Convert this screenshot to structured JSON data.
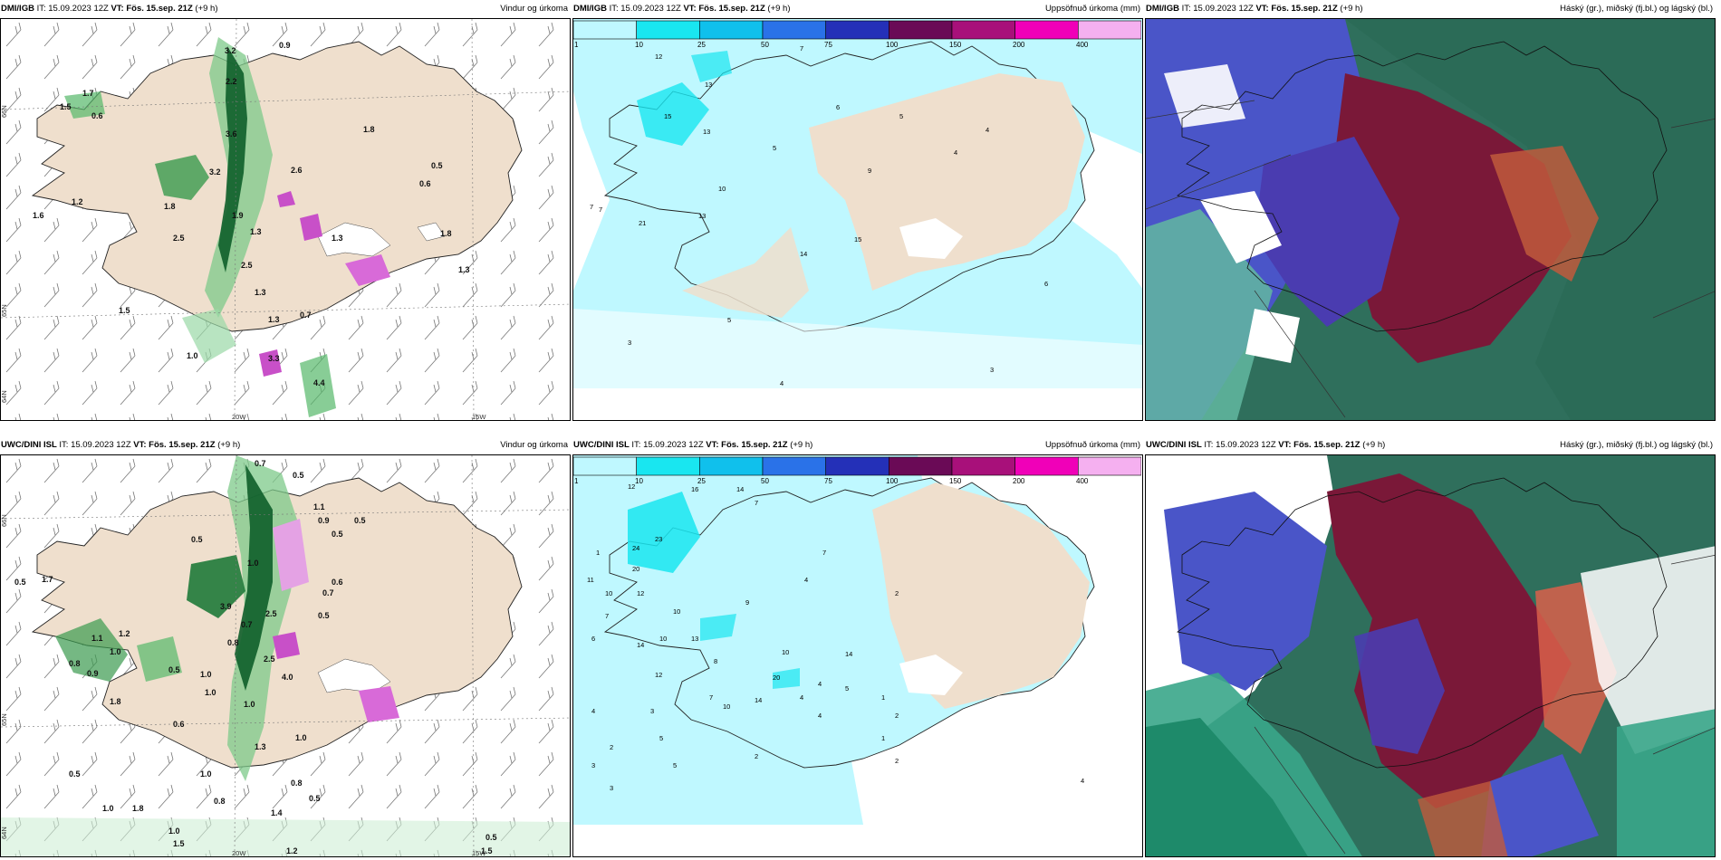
{
  "panels": [
    {
      "model": "DMI/IGB",
      "init_prefix": " IT: ",
      "init_time": "15.09.2023 12Z",
      "vt_prefix": " VT: ",
      "valid_time": "Fös. 15.sep. 21Z",
      "lead": " (+9 h)",
      "product": "Vindur og úrkoma",
      "lat_labels": [
        "66N",
        "65N",
        "64N"
      ],
      "lon_labels": [
        "20W",
        "15W"
      ],
      "values": [
        "3.2",
        "0.9",
        "2.2",
        "1.7",
        "1.5",
        "0.6",
        "3.6",
        "2.6",
        "1.8",
        "0.5",
        "3.2",
        "0.6",
        "1.2",
        "1.8",
        "1.6",
        "1.9",
        "2.5",
        "1.3",
        "1.3",
        "1.0",
        "0.7",
        "1.3",
        "1.5",
        "3.3",
        "1.3",
        "1.8",
        "2.5",
        "1.3",
        "4.4"
      ]
    },
    {
      "model": "DMI/IGB",
      "init_prefix": " IT: ",
      "init_time": "15.09.2023 12Z",
      "vt_prefix": " VT: ",
      "valid_time": "Fös. 15.sep. 21Z",
      "lead": " (+9 h)",
      "product": "Uppsöfnuð úrkoma (mm)",
      "values": [
        "12",
        "7",
        "13",
        "15",
        "13",
        "7",
        "5",
        "6",
        "5",
        "9",
        "4",
        "4",
        "10",
        "13",
        "21",
        "14",
        "15",
        "7",
        "5",
        "3",
        "3",
        "4",
        "6"
      ]
    },
    {
      "model": "DMI/IGB",
      "init_prefix": " IT: ",
      "init_time": "15.09.2023 12Z",
      "vt_prefix": " VT: ",
      "valid_time": "Fös. 15.sep. 21Z",
      "lead": " (+9 h)",
      "product": "Háský (gr.), miðský (fj.bl.) og lágský (bl.)"
    },
    {
      "model": "UWC/DINI ISL",
      "init_prefix": " IT: ",
      "init_time": "15.09.2023 12Z",
      "vt_prefix": " VT: ",
      "valid_time": "Fös. 15.sep. 21Z",
      "lead": " (+9 h)",
      "product": "Vindur og úrkoma",
      "lat_labels": [
        "66N",
        "65N",
        "64N"
      ],
      "lon_labels": [
        "20W",
        "15W"
      ],
      "values": [
        "0.7",
        "0.5",
        "1.1",
        "0.9",
        "0.5",
        "0.5",
        "0.5",
        "1.7",
        "0.6",
        "0.5",
        "1.0",
        "3.9",
        "0.7",
        "2.5",
        "1.2",
        "0.8",
        "0.9",
        "1.0",
        "0.5",
        "1.0",
        "1.8",
        "1.1",
        "0.5",
        "0.7",
        "0.8",
        "1.0",
        "0.6",
        "1.0",
        "1.0",
        "1.0",
        "0.8",
        "0.5",
        "0.8",
        "1.0",
        "1.8",
        "1.0",
        "1.5",
        "0.5",
        "1.5",
        "1.3",
        "1.2",
        "2.5",
        "4.0",
        "1.4",
        "0.5"
      ]
    },
    {
      "model": "UWC/DINI ISL",
      "init_prefix": " IT: ",
      "init_time": "15.09.2023 12Z",
      "vt_prefix": " VT: ",
      "valid_time": "Fös. 15.sep. 21Z",
      "lead": " (+9 h)",
      "product": "Uppsöfnuð úrkoma (mm)",
      "values": [
        "13",
        "10",
        "12",
        "14",
        "7",
        "16",
        "23",
        "24",
        "20",
        "11",
        "10",
        "12",
        "1",
        "10",
        "9",
        "4",
        "7",
        "7",
        "6",
        "14",
        "10",
        "13",
        "12",
        "8",
        "10",
        "14",
        "20",
        "14",
        "10",
        "2",
        "4",
        "3",
        "5",
        "3",
        "2",
        "4",
        "5",
        "2",
        "1",
        "2",
        "3",
        "7",
        "5",
        "4",
        "4",
        "2",
        "1",
        "4"
      ]
    },
    {
      "model": "UWC/DINI ISL",
      "init_prefix": " IT: ",
      "init_time": "15.09.2023 12Z",
      "vt_prefix": " VT: ",
      "valid_time": "Fös. 15.sep. 21Z",
      "lead": " (+9 h)",
      "product": "Háský (gr.), miðský (fj.bl.) og lágský (bl.)"
    }
  ],
  "legend": {
    "ticks": [
      "1",
      "10",
      "25",
      "50",
      "75",
      "100",
      "150",
      "200",
      "400"
    ],
    "colors": [
      "#bff8ff",
      "#19e6f0",
      "#10c0ec",
      "#2a72e8",
      "#2430b8",
      "#6a0a56",
      "#a8107a",
      "#f000b8",
      "#f5b0f0"
    ]
  }
}
